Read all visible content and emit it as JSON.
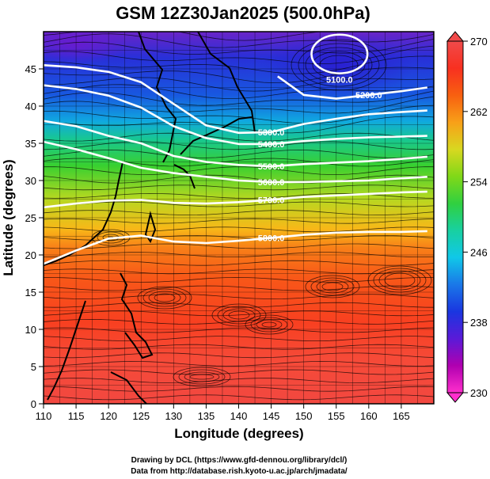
{
  "chart_data": {
    "type": "heatmap",
    "title": "GSM 12Z30Jan2025 (500.0hPa)",
    "xlabel": "Longitude (degrees)",
    "ylabel": "Latitude  (degrees)",
    "xlim": [
      110,
      170
    ],
    "ylim": [
      0,
      50
    ],
    "x_ticks": [
      "110",
      "115",
      "120",
      "125",
      "130",
      "135",
      "140",
      "145",
      "150",
      "155",
      "160",
      "165"
    ],
    "y_ticks": [
      "0",
      "5",
      "10",
      "15",
      "20",
      "25",
      "30",
      "35",
      "40",
      "45"
    ],
    "grid": true,
    "colorbar": {
      "min": 230,
      "max": 270,
      "ticks": [
        "230",
        "238",
        "246",
        "254",
        "262",
        "270"
      ],
      "colors": [
        "#ff2ecc",
        "#b000b0",
        "#5a1ad8",
        "#1a36e0",
        "#1a78e8",
        "#10c8e8",
        "#18d0a0",
        "#30d040",
        "#80d818",
        "#d8d820",
        "#f8a018",
        "#f86010",
        "#f83020",
        "#f04a4a"
      ]
    },
    "contours": [
      {
        "label": "5200.0",
        "points": [
          [
            146,
            44
          ],
          [
            150,
            41.5
          ],
          [
            155,
            41
          ],
          [
            160,
            41.5
          ],
          [
            165,
            42
          ],
          [
            169,
            42.5
          ]
        ]
      },
      {
        "label": "5300.0",
        "points": [
          [
            110,
            45.5
          ],
          [
            115,
            45.2
          ],
          [
            120,
            44.6
          ],
          [
            125,
            43.2
          ],
          [
            130,
            40.3
          ],
          [
            135,
            37.4
          ],
          [
            140,
            36.4
          ],
          [
            145,
            36.5
          ],
          [
            150,
            37.6
          ],
          [
            155,
            38.3
          ],
          [
            160,
            38.9
          ],
          [
            165,
            39.2
          ],
          [
            169,
            39.4
          ]
        ]
      },
      {
        "label": "5400.0",
        "points": [
          [
            110,
            42.8
          ],
          [
            115,
            42.3
          ],
          [
            120,
            41.4
          ],
          [
            125,
            39.8
          ],
          [
            130,
            37.3
          ],
          [
            135,
            35.7
          ],
          [
            140,
            34.9
          ],
          [
            145,
            34.9
          ],
          [
            150,
            35.3
          ],
          [
            155,
            35.6
          ],
          [
            160,
            35.8
          ],
          [
            165,
            35.9
          ],
          [
            169,
            36.0
          ]
        ]
      },
      {
        "label": "5500.0",
        "points": [
          [
            110,
            38.0
          ],
          [
            115,
            37.3
          ],
          [
            120,
            36.0
          ],
          [
            125,
            35.0
          ],
          [
            130,
            33.3
          ],
          [
            135,
            32.5
          ],
          [
            140,
            32.1
          ],
          [
            145,
            31.9
          ],
          [
            150,
            32.2
          ],
          [
            155,
            32.4
          ],
          [
            160,
            32.6
          ],
          [
            165,
            32.9
          ],
          [
            169,
            33.2
          ]
        ]
      },
      {
        "label": "5600.0",
        "points": [
          [
            110,
            35.2
          ],
          [
            115,
            34.2
          ],
          [
            120,
            33.0
          ],
          [
            125,
            31.7
          ],
          [
            130,
            31.0
          ],
          [
            135,
            30.5
          ],
          [
            140,
            30.0
          ],
          [
            145,
            29.8
          ],
          [
            150,
            29.8
          ],
          [
            155,
            29.9
          ],
          [
            160,
            30.0
          ],
          [
            165,
            30.3
          ],
          [
            169,
            30.5
          ]
        ]
      },
      {
        "label": "5700.0",
        "points": [
          [
            110,
            26.4
          ],
          [
            115,
            26.9
          ],
          [
            120,
            27.3
          ],
          [
            125,
            27.4
          ],
          [
            130,
            27.0
          ],
          [
            135,
            26.9
          ],
          [
            140,
            27.1
          ],
          [
            145,
            27.4
          ],
          [
            150,
            27.8
          ],
          [
            155,
            28.0
          ],
          [
            160,
            28.2
          ],
          [
            165,
            28.4
          ],
          [
            169,
            28.5
          ]
        ]
      },
      {
        "label": "5800.0",
        "points": [
          [
            110,
            18.8
          ],
          [
            115,
            20.6
          ],
          [
            120,
            22.2
          ],
          [
            125,
            22.6
          ],
          [
            130,
            21.8
          ],
          [
            135,
            21.6
          ],
          [
            140,
            21.9
          ],
          [
            145,
            22.3
          ],
          [
            150,
            22.7
          ],
          [
            155,
            23.0
          ],
          [
            160,
            23.1
          ],
          [
            165,
            23.1
          ],
          [
            169,
            23.2
          ]
        ]
      }
    ],
    "closed_contours": [
      {
        "label": "5100.0",
        "center": [
          155.5,
          47
        ],
        "rx": 4.3,
        "ry": 2.6
      }
    ]
  },
  "credits": {
    "line1": "Drawing by DCL (https://www.gfd-dennou.org/library/dcl/)",
    "line2": "Data from http://database.rish.kyoto-u.ac.jp/arch/jmadata/"
  }
}
